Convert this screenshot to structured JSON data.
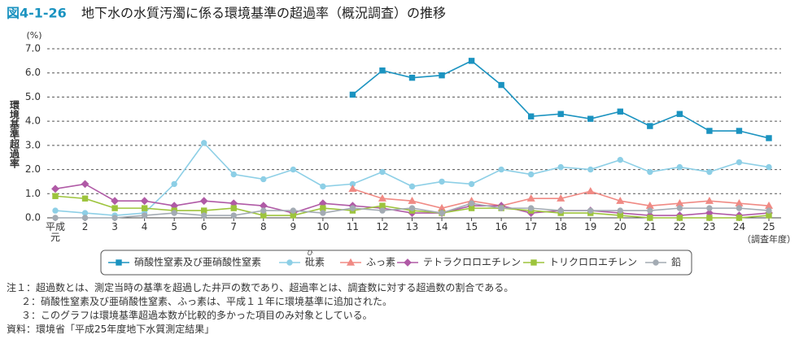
{
  "chart_data": {
    "type": "line",
    "figure_number": "図4-1-26",
    "title": "地下水の水質汚濁に係る環境基準の超過率（概況調査）の推移",
    "y_unit": "(%)",
    "y_label": "環境基準超過率",
    "x_label": "（調査年度）",
    "categories": [
      "平成元",
      "2",
      "3",
      "4",
      "5",
      "6",
      "7",
      "8",
      "9",
      "10",
      "11",
      "12",
      "13",
      "14",
      "15",
      "16",
      "17",
      "18",
      "19",
      "20",
      "21",
      "22",
      "23",
      "24",
      "25"
    ],
    "ylim": [
      0,
      7
    ],
    "yticks": [
      {
        "value": 0,
        "label": "0.0"
      },
      {
        "value": 1,
        "label": "1.0"
      },
      {
        "value": 2,
        "label": "2.0"
      },
      {
        "value": 3,
        "label": "3.0"
      },
      {
        "value": 4,
        "label": "4.0"
      },
      {
        "value": 5,
        "label": "5.0"
      },
      {
        "value": 6,
        "label": "6.0"
      },
      {
        "value": 7,
        "label": "7.0"
      }
    ],
    "grid": true,
    "series": [
      {
        "name": "硝酸性窒素及び亜硝酸性窒素",
        "color": "#1b93c0",
        "marker": "square",
        "values": [
          null,
          null,
          null,
          null,
          null,
          null,
          null,
          null,
          null,
          null,
          5.1,
          6.1,
          5.8,
          5.9,
          6.5,
          5.5,
          4.2,
          4.3,
          4.1,
          4.4,
          3.8,
          4.3,
          3.6,
          3.6,
          3.3
        ]
      },
      {
        "name": "砒素",
        "ruby": "ひ",
        "color": "#8dcfe6",
        "marker": "circle",
        "values": [
          0.3,
          0.2,
          0.1,
          0.2,
          1.4,
          3.1,
          1.8,
          1.6,
          2.0,
          1.3,
          1.4,
          1.9,
          1.3,
          1.5,
          1.4,
          2.0,
          1.8,
          2.1,
          2.0,
          2.4,
          1.9,
          2.1,
          1.9,
          2.3,
          2.1
        ]
      },
      {
        "name": "ふっ素",
        "color": "#f08a84",
        "marker": "triangle",
        "values": [
          null,
          null,
          null,
          null,
          null,
          null,
          null,
          null,
          null,
          null,
          1.2,
          0.8,
          0.7,
          0.4,
          0.7,
          0.5,
          0.8,
          0.8,
          1.1,
          0.7,
          0.5,
          0.6,
          0.7,
          0.6,
          0.5
        ]
      },
      {
        "name": "テトラクロロエチレン",
        "color": "#b05aa6",
        "marker": "diamond",
        "values": [
          1.2,
          1.4,
          0.7,
          0.7,
          0.5,
          0.7,
          0.6,
          0.5,
          0.2,
          0.6,
          0.5,
          0.4,
          0.2,
          0.2,
          0.5,
          0.5,
          0.2,
          0.3,
          0.3,
          0.2,
          0.1,
          0.1,
          0.2,
          0.1,
          0.2
        ]
      },
      {
        "name": "トリクロロエチレン",
        "color": "#9dc43c",
        "marker": "square",
        "values": [
          0.9,
          0.8,
          0.4,
          0.4,
          0.3,
          0.3,
          0.4,
          0.1,
          0.1,
          0.4,
          0.3,
          0.5,
          0.3,
          0.2,
          0.4,
          0.4,
          0.3,
          0.2,
          0.2,
          0.1,
          0.0,
          0.0,
          0.0,
          0.0,
          0.1
        ]
      },
      {
        "name": "鉛",
        "color": "#a3abb3",
        "marker": "circle",
        "values": [
          0.0,
          0.0,
          0.0,
          0.1,
          0.2,
          0.1,
          0.1,
          0.3,
          0.3,
          0.2,
          0.4,
          0.3,
          0.4,
          0.2,
          0.6,
          0.4,
          0.4,
          0.3,
          0.3,
          0.3,
          0.3,
          0.4,
          0.4,
          0.4,
          0.3
        ]
      }
    ],
    "notes": [
      "注１：超過数とは、測定当時の基準を超過した井戸の数であり、超過率とは、調査数に対する超過数の割合である。",
      "２：硝酸性窒素及び亜硝酸性窒素、ふっ素は、平成１１年に環境基準に追加された。",
      "３：このグラフは環境基準超過本数が比較的多かった項目のみ対象としている。"
    ],
    "source": "資料：環境省「平成25年度地下水質測定結果」"
  }
}
